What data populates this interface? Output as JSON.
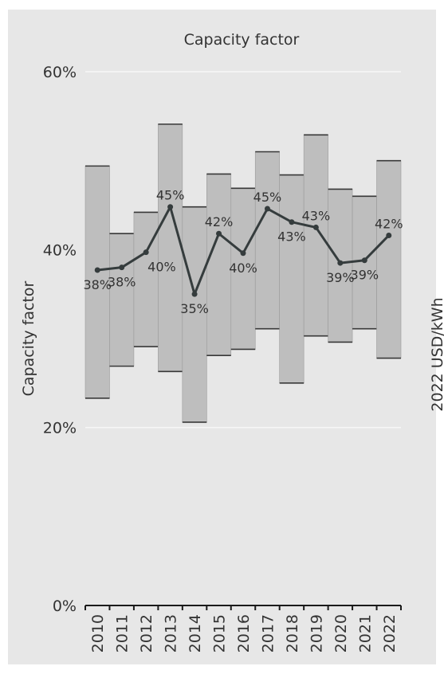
{
  "chart_data": {
    "type": "bar",
    "title": "Capacity factor",
    "ylabel": "Capacity factor",
    "secondary_ylabel": "2022 USD/kWh",
    "ylim": [
      0,
      60
    ],
    "yticks": [
      0,
      20,
      40,
      60
    ],
    "ytick_labels": [
      "0%",
      "20%",
      "40%",
      "60%"
    ],
    "grid": true,
    "categories": [
      "2010",
      "2011",
      "2012",
      "2013",
      "2014",
      "2015",
      "2016",
      "2017",
      "2018",
      "2019",
      "2020",
      "2021",
      "2022"
    ],
    "series": [
      {
        "type": "range",
        "low": [
          23.3,
          26.9,
          29.1,
          26.3,
          20.6,
          28.1,
          28.8,
          31.1,
          25.0,
          30.3,
          29.6,
          31.1,
          27.8
        ],
        "high": [
          49.4,
          41.8,
          44.2,
          54.1,
          44.8,
          48.5,
          46.9,
          51.0,
          48.4,
          52.9,
          46.8,
          46.0,
          50.0
        ]
      },
      {
        "type": "line",
        "values": [
          37.7,
          38.0,
          39.7,
          44.8,
          35.0,
          41.8,
          39.6,
          44.6,
          43.1,
          42.5,
          38.5,
          38.8,
          41.6
        ],
        "labels": [
          "38%",
          "38%",
          "40%",
          "45%",
          "35%",
          "42%",
          "40%",
          "45%",
          "43%",
          "43%",
          "39%",
          "39%",
          "42%"
        ]
      }
    ]
  },
  "colors": {
    "background": "#e7e7e7",
    "bar_fill": "#bebebe",
    "bar_edge": "#383838",
    "line": "#353c3d",
    "grid": "#f7f7f7",
    "text": "#333333"
  }
}
